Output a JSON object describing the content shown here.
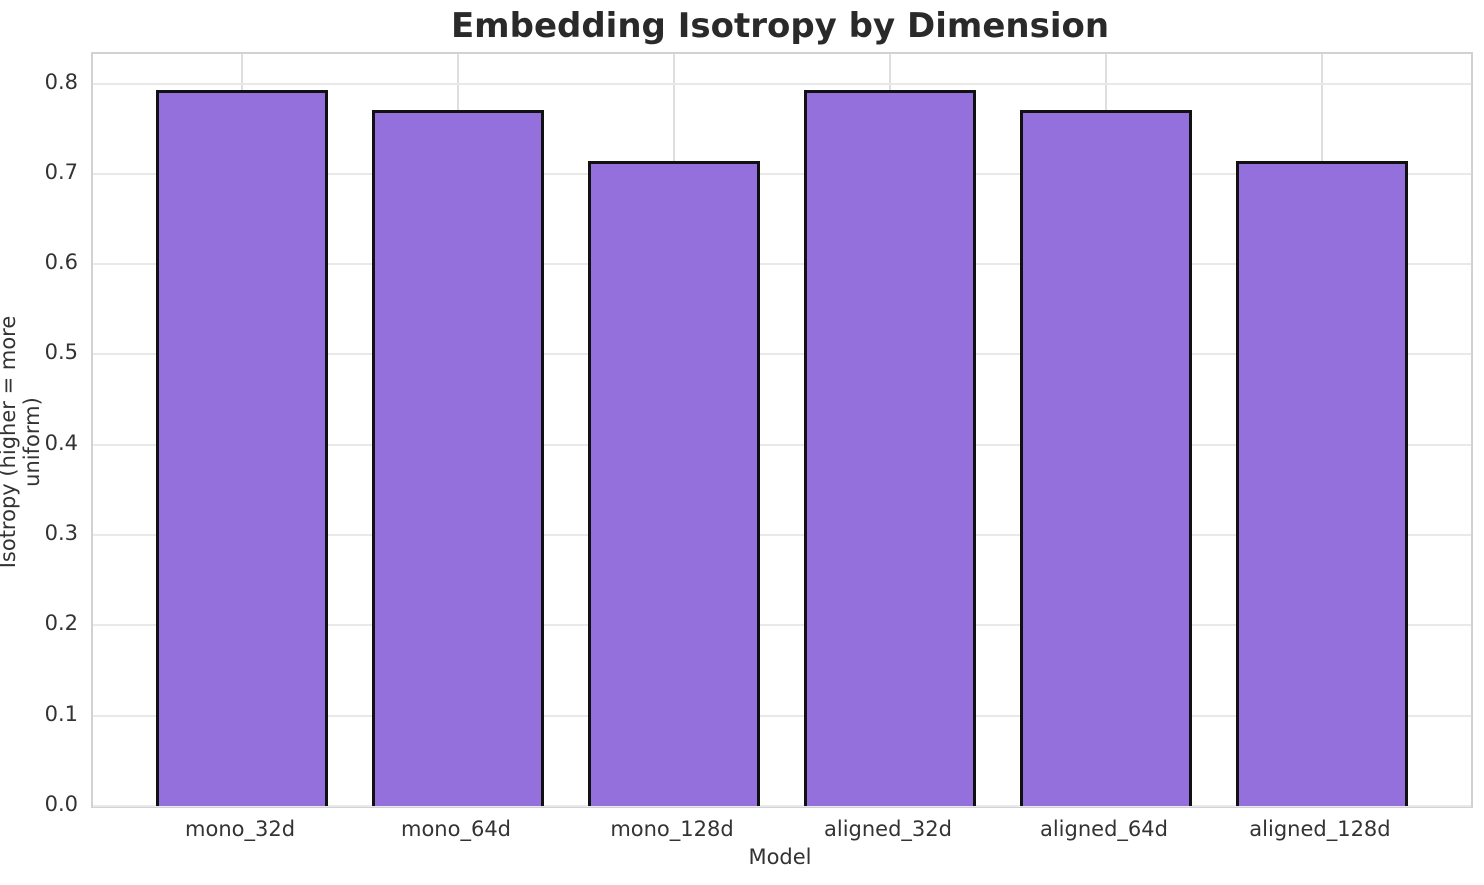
{
  "chart_data": {
    "type": "bar",
    "title": "Embedding Isotropy by Dimension",
    "xlabel": "Model",
    "ylabel": "Isotropy (higher = more uniform)",
    "categories": [
      "mono_32d",
      "mono_64d",
      "mono_128d",
      "aligned_32d",
      "aligned_64d",
      "aligned_128d"
    ],
    "values": [
      0.793,
      0.771,
      0.714,
      0.793,
      0.771,
      0.714
    ],
    "yticks": [
      0.0,
      0.1,
      0.2,
      0.3,
      0.4,
      0.5,
      0.6,
      0.7,
      0.8
    ],
    "ytick_labels": [
      "0.0",
      "0.1",
      "0.2",
      "0.3",
      "0.4",
      "0.5",
      "0.6",
      "0.7",
      "0.8"
    ],
    "ylim": [
      0,
      0.8327
    ],
    "xlim": [
      -0.69,
      5.69
    ],
    "bar_width": 0.8,
    "bar_color": "#9370DB",
    "bar_edge_color": "#111111",
    "grid": true,
    "legend": false
  }
}
